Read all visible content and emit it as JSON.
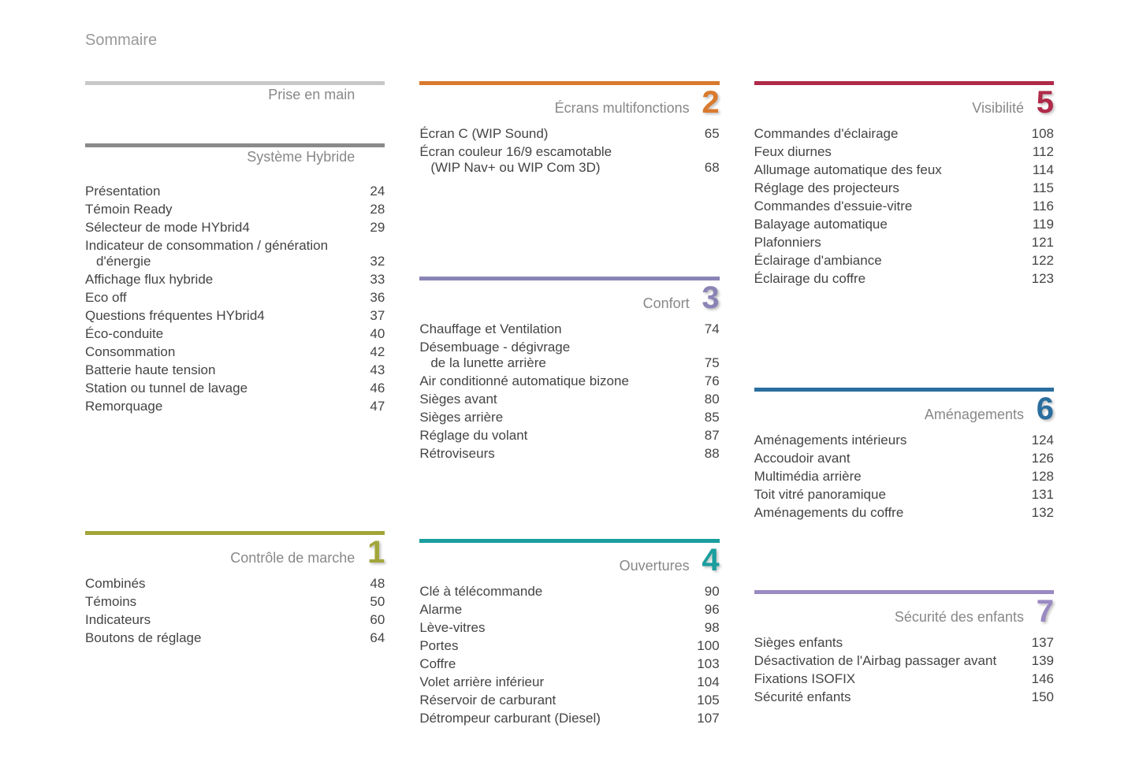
{
  "page_title": "Sommaire",
  "background_color": "#ffffff",
  "text_color": "#444444",
  "title_color": "#888888",
  "columns": [
    [
      {
        "id": "prise-en-main",
        "title": "Prise en main",
        "bar_color": "#c8c8c8",
        "number": "",
        "number_color": "#c8c8c8",
        "entries": []
      },
      {
        "id": "systeme-hybride",
        "title": "Système Hybride",
        "bar_color": "#8a8a8a",
        "number": "",
        "number_color": "#8a8a8a",
        "entries": [
          {
            "label": "Présentation",
            "page": "24"
          },
          {
            "label": "Témoin Ready",
            "page": "28"
          },
          {
            "label": "Sélecteur de mode HYbrid4",
            "page": "29"
          },
          {
            "label": "Indicateur de consommation / génération",
            "label2": "d'énergie",
            "page": "32"
          },
          {
            "label": "Affichage flux hybride",
            "page": "33"
          },
          {
            "label": "Eco off",
            "page": "36"
          },
          {
            "label": "Questions fréquentes HYbrid4",
            "page": "37"
          },
          {
            "label": "Éco-conduite",
            "page": "40"
          },
          {
            "label": "Consommation",
            "page": "42"
          },
          {
            "label": "Batterie haute tension",
            "page": "43"
          },
          {
            "label": "Station ou tunnel de lavage",
            "page": "46"
          },
          {
            "label": "Remorquage",
            "page": "47"
          }
        ]
      },
      {
        "id": "controle-de-marche",
        "title": "Contrôle de marche",
        "bar_color": "#a2a63a",
        "number": "1",
        "number_color": "#a2a63a",
        "spacer_before": 120,
        "entries": [
          {
            "label": "Combinés",
            "page": "48"
          },
          {
            "label": "Témoins",
            "page": "50"
          },
          {
            "label": "Indicateurs",
            "page": "60"
          },
          {
            "label": "Boutons de réglage",
            "page": "64"
          }
        ]
      }
    ],
    [
      {
        "id": "ecrans-multifonctions",
        "title": "Écrans multifonctions",
        "bar_color": "#d97a2e",
        "number": "2",
        "number_color": "#d97a2e",
        "entries": [
          {
            "label": "Écran C (WIP Sound)",
            "page": "65"
          },
          {
            "label": "Écran couleur 16/9 escamotable",
            "label2": "(WIP Nav+ ou WIP Com 3D)",
            "page": "68"
          }
        ]
      },
      {
        "id": "confort",
        "title": "Confort",
        "bar_color": "#8a84b5",
        "number": "3",
        "number_color": "#8a84b5",
        "spacer_before": 100,
        "entries": [
          {
            "label": "Chauffage et Ventilation",
            "page": "74"
          },
          {
            "label": "Désembuage - dégivrage",
            "label2": "de la lunette arrière",
            "page": "75"
          },
          {
            "label": "Air conditionné automatique bizone",
            "page": "76"
          },
          {
            "label": "Sièges avant",
            "page": "80"
          },
          {
            "label": "Sièges arrière",
            "page": "85"
          },
          {
            "label": "Réglage du volant",
            "page": "87"
          },
          {
            "label": "Rétroviseurs",
            "page": "88"
          }
        ]
      },
      {
        "id": "ouvertures",
        "title": "Ouvertures",
        "bar_color": "#1a9e9e",
        "number": "4",
        "number_color": "#1a9e9e",
        "spacer_before": 70,
        "entries": [
          {
            "label": "Clé à télécommande",
            "page": "90"
          },
          {
            "label": "Alarme",
            "page": "96"
          },
          {
            "label": "Lève-vitres",
            "page": "98"
          },
          {
            "label": "Portes",
            "page": "100"
          },
          {
            "label": "Coffre",
            "page": "103"
          },
          {
            "label": "Volet arrière inférieur",
            "page": "104"
          },
          {
            "label": "Réservoir de carburant",
            "page": "105"
          },
          {
            "label": "Détrompeur carburant (Diesel)",
            "page": "107"
          }
        ]
      }
    ],
    [
      {
        "id": "visibilite",
        "title": "Visibilité",
        "bar_color": "#b02a4a",
        "number": "5",
        "number_color": "#b02a4a",
        "entries": [
          {
            "label": "Commandes d'éclairage",
            "page": "108"
          },
          {
            "label": "Feux diurnes",
            "page": "112"
          },
          {
            "label": "Allumage automatique des feux",
            "page": "114"
          },
          {
            "label": "Réglage des projecteurs",
            "page": "115"
          },
          {
            "label": "Commandes d'essuie-vitre",
            "page": "116"
          },
          {
            "label": "Balayage automatique",
            "page": "119"
          },
          {
            "label": "Plafonniers",
            "page": "121"
          },
          {
            "label": "Éclairage d'ambiance",
            "page": "122"
          },
          {
            "label": "Éclairage du coffre",
            "page": "123"
          }
        ]
      },
      {
        "id": "amenagements",
        "title": "Aménagements",
        "bar_color": "#2a6e9e",
        "number": "6",
        "number_color": "#2a6e9e",
        "spacer_before": 100,
        "entries": [
          {
            "label": "Aménagements intérieurs",
            "page": "124"
          },
          {
            "label": "Accoudoir avant",
            "page": "126"
          },
          {
            "label": "Multimédia arrière",
            "page": "128"
          },
          {
            "label": "Toit vitré panoramique",
            "page": "131"
          },
          {
            "label": "Aménagements du coffre",
            "page": "132"
          }
        ]
      },
      {
        "id": "securite-enfants",
        "title": "Sécurité des enfants",
        "bar_color": "#9a8ac2",
        "number": "7",
        "number_color": "#9a8ac2",
        "spacer_before": 60,
        "entries": [
          {
            "label": "Sièges enfants",
            "page": "137"
          },
          {
            "label": "Désactivation de l'Airbag passager avant",
            "page": "139"
          },
          {
            "label": "Fixations ISOFIX",
            "page": "146"
          },
          {
            "label": "Sécurité enfants",
            "page": "150"
          }
        ]
      }
    ]
  ]
}
